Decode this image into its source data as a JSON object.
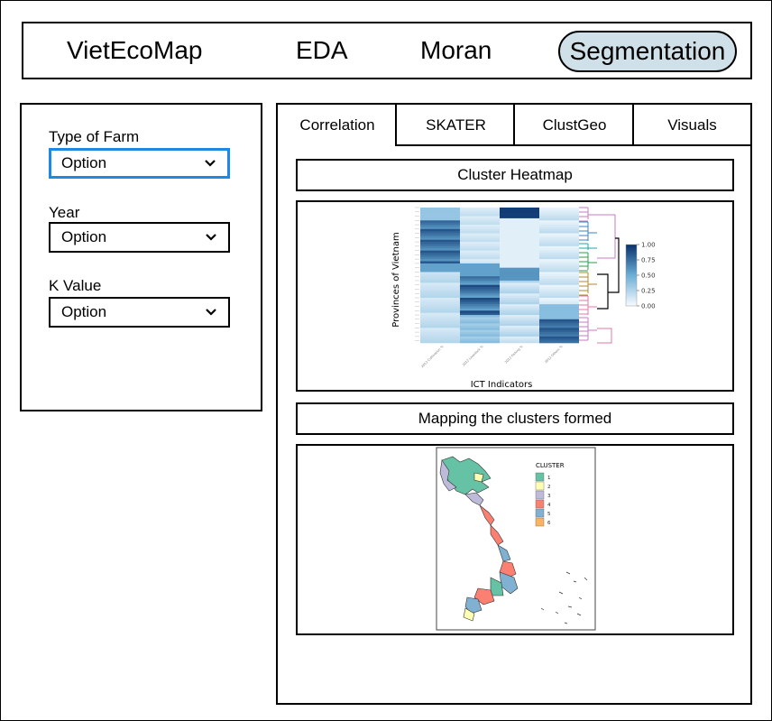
{
  "nav": {
    "brand": "VietEcoMap",
    "items": [
      "EDA",
      "Moran",
      "Segmentation"
    ],
    "active": "Segmentation"
  },
  "sidebar": {
    "filters": [
      {
        "label": "Type of Farm",
        "value": "Option"
      },
      {
        "label": "Year",
        "value": "Option"
      },
      {
        "label": "K Value",
        "value": "Option"
      }
    ]
  },
  "tabs": [
    "Correlation",
    "SKATER",
    "ClustGeo",
    "Visuals"
  ],
  "active_tab": "Correlation",
  "sections": {
    "heatmap_title": "Cluster Heatmap",
    "map_title": "Mapping the clusters formed"
  },
  "heatmap": {
    "ylabel": "Provinces of Vietnam",
    "xlabel": "ICT Indicators",
    "columns": [
      "2012 Cultivation %",
      "2012 Livestock %",
      "2012 Fishing %",
      "2012 Others %"
    ],
    "colorbar_ticks": [
      "1.00",
      "0.75",
      "0.50",
      "0.25",
      "0.00"
    ]
  },
  "map": {
    "legend_title": "CLUSTER",
    "legend": [
      {
        "label": "1",
        "color": "#66c2a5"
      },
      {
        "label": "2",
        "color": "#ffffb3"
      },
      {
        "label": "3",
        "color": "#bebada"
      },
      {
        "label": "4",
        "color": "#fb8072"
      },
      {
        "label": "5",
        "color": "#80b1d3"
      },
      {
        "label": "6",
        "color": "#fdb462"
      }
    ]
  }
}
